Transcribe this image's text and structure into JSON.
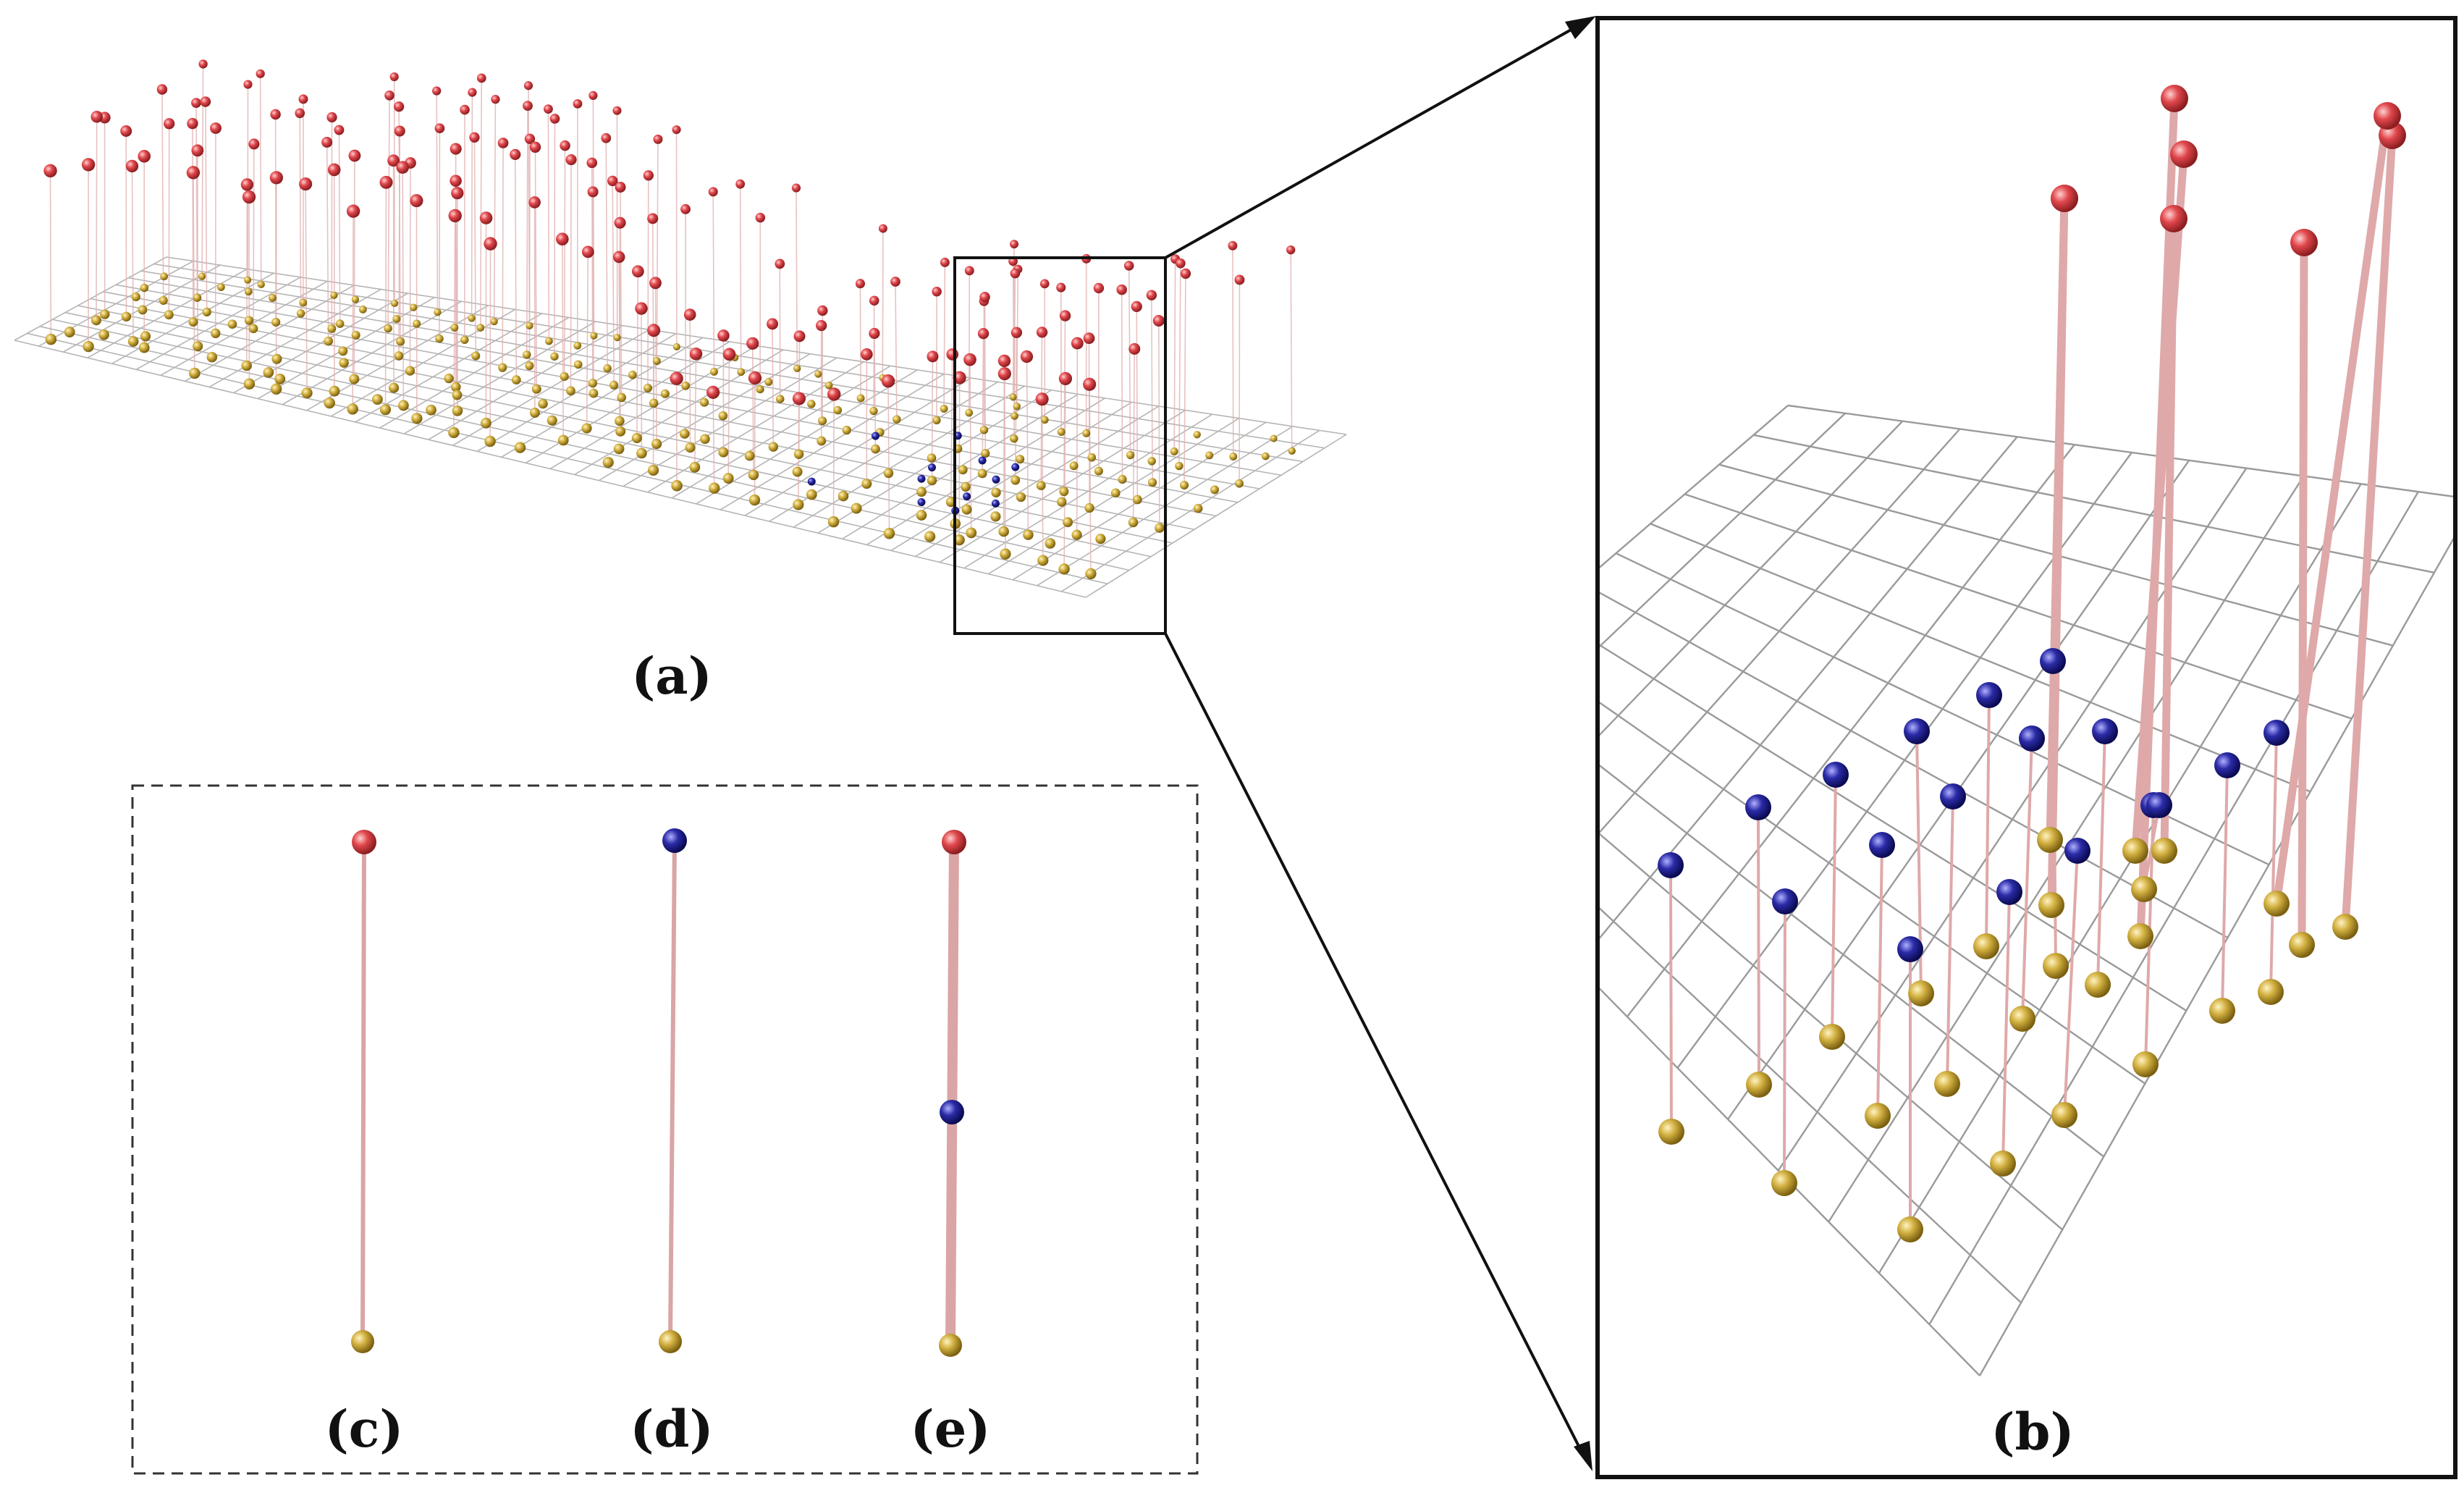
{
  "figure": {
    "panels": {
      "a": {
        "label": "(a)",
        "description_tag": "overview-terrain-point-cloud"
      },
      "b": {
        "label": "(b)",
        "description_tag": "zoomed-detail"
      },
      "c": {
        "label": "(c)"
      },
      "d": {
        "label": "(d)"
      },
      "e": {
        "label": "(e)"
      }
    },
    "colors": {
      "top_sphere": "#e0474c",
      "bottom_sphere": "#d2b040",
      "middle_sphere": "#2b2ba8",
      "stem": "#d9a5a5",
      "grid": "#9a9a9a",
      "frame": "#111111",
      "dashed_box": "#333333"
    }
  }
}
